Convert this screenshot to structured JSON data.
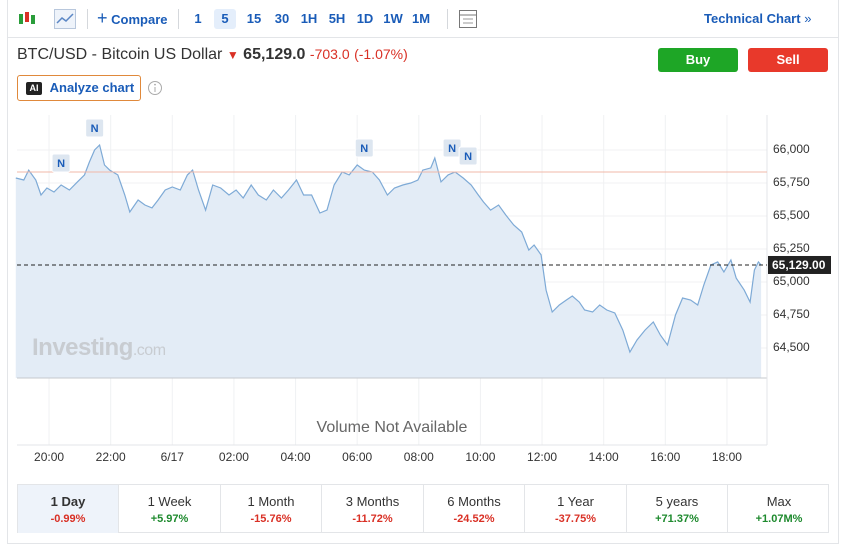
{
  "toolbar": {
    "compare": "Compare",
    "intervals": [
      "1",
      "5",
      "15",
      "30",
      "1H",
      "5H",
      "1D",
      "1W",
      "1M"
    ],
    "technical": "Technical Chart"
  },
  "header": {
    "title": "BTC/USD - Bitcoin US Dollar",
    "price": "65,129.0",
    "change": "-703.0",
    "change_pct": "(-1.07%)",
    "buy": "Buy",
    "sell": "Sell",
    "ai_icon": "AI",
    "analyze": "Analyze chart"
  },
  "watermark": {
    "brand": "Investing",
    "suffix": ".com"
  },
  "volume_note": "Volume Not Available",
  "periods": [
    {
      "name": "1 Day",
      "change": "-0.99%"
    },
    {
      "name": "1 Week",
      "change": "+5.97%"
    },
    {
      "name": "1 Month",
      "change": "-15.76%"
    },
    {
      "name": "3 Months",
      "change": "-11.72%"
    },
    {
      "name": "6 Months",
      "change": "-24.52%"
    },
    {
      "name": "1 Year",
      "change": "-37.75%"
    },
    {
      "name": "5 years",
      "change": "+71.37%"
    },
    {
      "name": "Max",
      "change": "+1.07M%"
    }
  ],
  "chart_data": {
    "type": "area",
    "color": "#7eaad6",
    "fill": "#e3ecf6",
    "grid": true,
    "x": [
      -5.08,
      -4.82,
      -4.66,
      -4.43,
      -4.26,
      -4.07,
      -3.84,
      -3.61,
      -3.34,
      -3.08,
      -2.85,
      -2.69,
      -2.52,
      -2.36,
      -2.2,
      -2.03,
      -1.77,
      -1.54,
      -1.38,
      -1.11,
      -0.89,
      -0.66,
      -0.46,
      -0.23,
      0,
      0.26,
      0.49,
      0.66,
      0.85,
      1.08,
      1.31,
      1.57,
      1.84,
      2.07,
      2.3,
      2.56,
      2.79,
      3.05,
      3.28,
      3.54,
      3.77,
      4.03,
      4.26,
      4.52,
      4.79,
      5.02,
      5.25,
      5.51,
      5.74,
      6,
      6.23,
      6.49,
      6.72,
      6.98,
      7.21,
      7.48,
      7.74,
      7.97,
      8.13,
      8.39,
      8.52,
      8.72,
      8.95,
      9.18,
      9.44,
      9.7,
      9.93,
      10.1,
      10.33,
      10.59,
      10.82,
      11.08,
      11.34,
      11.57,
      11.74,
      11.97,
      12.13,
      12.33,
      12.56,
      12.79,
      12.98,
      13.21,
      13.38,
      13.64,
      13.87,
      14.1,
      14.36,
      14.62,
      14.85,
      15.08,
      15.34,
      15.61,
      15.84,
      16.07,
      16.33,
      16.56,
      16.82,
      17.05,
      17.25,
      17.48,
      17.7,
      17.9,
      18.13,
      18.3,
      18.56,
      18.75,
      18.89,
      19.02,
      19.11
    ],
    "values": [
      65788,
      65773,
      65848,
      65773,
      65659,
      65712,
      65682,
      65735,
      65697,
      65758,
      65811,
      65909,
      66000,
      66038,
      65886,
      65848,
      65811,
      65659,
      65530,
      65621,
      65583,
      65561,
      65621,
      65697,
      65720,
      65697,
      65811,
      65848,
      65697,
      65545,
      65735,
      65712,
      65659,
      65697,
      65636,
      65735,
      65659,
      65621,
      65697,
      65636,
      65697,
      65773,
      65659,
      65659,
      65523,
      65545,
      65735,
      65833,
      65811,
      65886,
      65848,
      65833,
      65773,
      65659,
      65712,
      65735,
      65750,
      65773,
      65848,
      65864,
      65939,
      65758,
      65811,
      65833,
      65788,
      65735,
      65659,
      65606,
      65545,
      65583,
      65508,
      65432,
      65379,
      65242,
      65280,
      65205,
      64939,
      64773,
      64826,
      64864,
      64894,
      64848,
      64788,
      64773,
      64826,
      64788,
      64765,
      64636,
      64470,
      64561,
      64636,
      64697,
      64598,
      64523,
      64750,
      64879,
      64864,
      64826,
      64977,
      65129,
      65152,
      65076,
      65167,
      65030,
      64939,
      64848,
      65091,
      65152,
      65129
    ],
    "xlim": [
      -5.04,
      19.3
    ],
    "xticks": [
      {
        "value": -4,
        "label": "20:00"
      },
      {
        "value": -2,
        "label": "22:00"
      },
      {
        "value": 0,
        "label": "6/17"
      },
      {
        "value": 2,
        "label": "02:00"
      },
      {
        "value": 4,
        "label": "04:00"
      },
      {
        "value": 6,
        "label": "06:00"
      },
      {
        "value": 8,
        "label": "08:00"
      },
      {
        "value": 10,
        "label": "10:00"
      },
      {
        "value": 12,
        "label": "12:00"
      },
      {
        "value": 14,
        "label": "14:00"
      },
      {
        "value": 16,
        "label": "16:00"
      },
      {
        "value": 18,
        "label": "18:00"
      }
    ],
    "ylim": [
      64273,
      66265
    ],
    "yticks": [
      {
        "value": 64500,
        "label": "64,500"
      },
      {
        "value": 64750,
        "label": "64,750"
      },
      {
        "value": 65000,
        "label": "65,000"
      },
      {
        "value": 65250,
        "label": "65,250"
      },
      {
        "value": 65500,
        "label": "65,500"
      },
      {
        "value": 65750,
        "label": "65,750"
      },
      {
        "value": 66000,
        "label": "66,000"
      }
    ],
    "reference_line": {
      "value": 65833,
      "color": "#f2b8a8"
    },
    "current_price": {
      "value": 65129,
      "label": "65,129.00"
    },
    "news_markers": [
      {
        "x": -3.61,
        "y": 65735,
        "label": "N"
      },
      {
        "x": -2.52,
        "y": 66000,
        "label": "N"
      },
      {
        "x": 6.23,
        "y": 65848,
        "label": "N"
      },
      {
        "x": 9.08,
        "y": 65848,
        "label": "N"
      },
      {
        "x": 9.6,
        "y": 65788,
        "label": "N"
      }
    ]
  }
}
